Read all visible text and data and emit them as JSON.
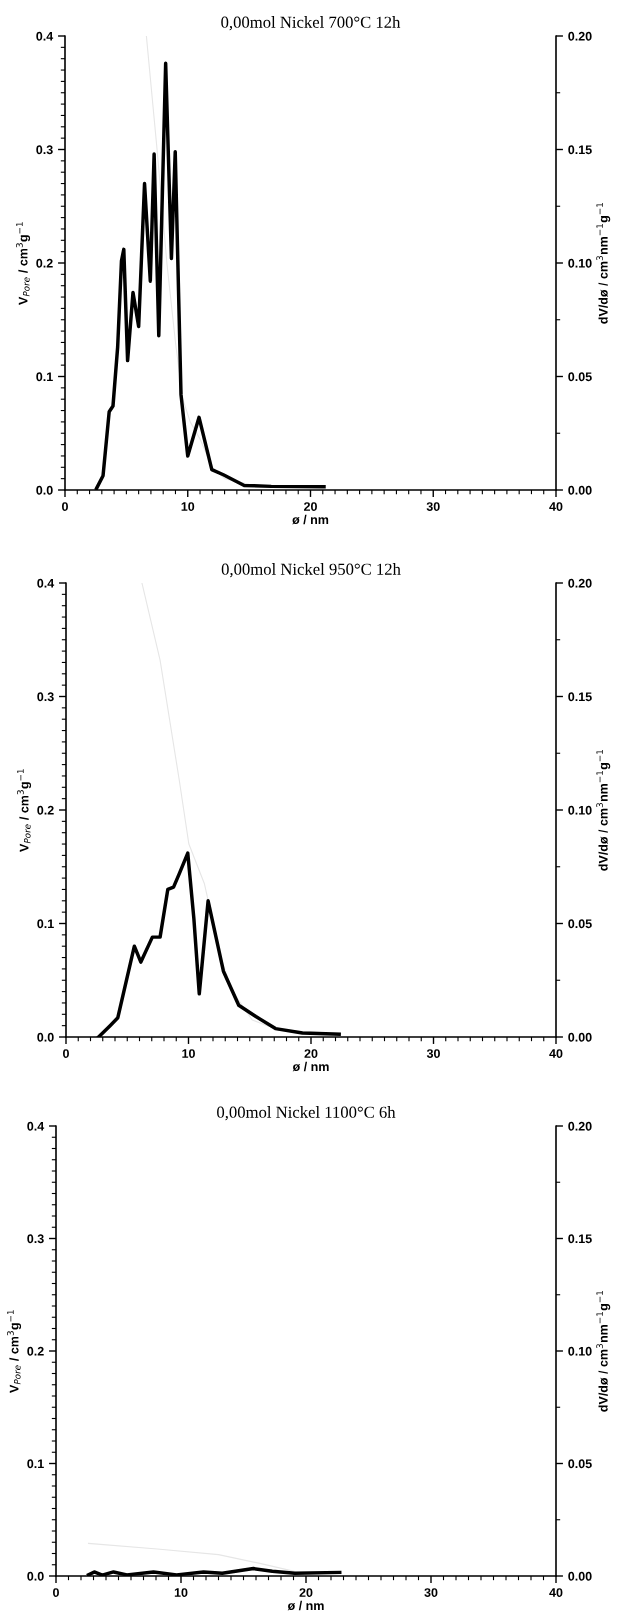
{
  "chart_data": [
    {
      "type": "line",
      "title": "0,00mol Nickel 700°C 12h",
      "xlabel": "ø / nm",
      "ylabel": "V$_{Pore}$ / cm$^{3}$g$^{−1}$",
      "y2label": "dV/dø / cm$^{3}$nm$^{−1}$g$^{−1}$",
      "xlim": [
        0,
        40
      ],
      "ylim": [
        0,
        0.4
      ],
      "y2lim": [
        0,
        0.2
      ],
      "xticks": [
        0,
        {
          "value": 1,
          "label": null
        },
        {
          "value": 2,
          "label": null
        },
        {
          "value": 3,
          "label": null
        },
        {
          "value": 4,
          "label": null
        },
        {
          "value": 5,
          "label": null
        },
        {
          "value": 6,
          "label": null
        },
        {
          "value": 7,
          "label": null
        },
        {
          "value": 8,
          "label": null
        },
        {
          "value": 9,
          "label": null
        },
        10,
        {
          "value": 11,
          "label": null
        },
        {
          "value": 12,
          "label": null
        },
        {
          "value": 13,
          "label": null
        },
        {
          "value": 14,
          "label": null
        },
        {
          "value": 15,
          "label": null
        },
        {
          "value": 16,
          "label": null
        },
        {
          "value": 17,
          "label": null
        },
        {
          "value": 18,
          "label": null
        },
        {
          "value": 19,
          "label": null
        },
        20,
        {
          "value": 21,
          "label": null
        },
        {
          "value": 22,
          "label": null
        },
        {
          "value": 23,
          "label": null
        },
        {
          "value": 24,
          "label": null
        },
        {
          "value": 25,
          "label": null
        },
        {
          "value": 26,
          "label": null
        },
        {
          "value": 27,
          "label": null
        },
        {
          "value": 28,
          "label": null
        },
        {
          "value": 29,
          "label": null
        },
        30,
        {
          "value": 31,
          "label": null
        },
        {
          "value": 32,
          "label": null
        },
        {
          "value": 33,
          "label": null
        },
        {
          "value": 34,
          "label": null
        },
        {
          "value": 35,
          "label": null
        },
        {
          "value": 36,
          "label": null
        },
        {
          "value": 37,
          "label": null
        },
        {
          "value": 38,
          "label": null
        },
        {
          "value": 39,
          "label": null
        },
        40
      ],
      "yticks": [
        {
          "value": 0,
          "label": "0.0"
        },
        {
          "value": 0.01,
          "label": null
        },
        {
          "value": 0.02,
          "label": null
        },
        {
          "value": 0.03,
          "label": null
        },
        {
          "value": 0.04,
          "label": null
        },
        {
          "value": 0.05,
          "label": null
        },
        {
          "value": 0.06,
          "label": null
        },
        {
          "value": 0.07,
          "label": null
        },
        {
          "value": 0.08,
          "label": null
        },
        {
          "value": 0.09,
          "label": null
        },
        0.1,
        {
          "value": 0.11,
          "label": null
        },
        {
          "value": 0.12,
          "label": null
        },
        {
          "value": 0.13,
          "label": null
        },
        {
          "value": 0.14,
          "label": null
        },
        {
          "value": 0.15,
          "label": null
        },
        {
          "value": 0.16,
          "label": null
        },
        {
          "value": 0.17,
          "label": null
        },
        {
          "value": 0.18,
          "label": null
        },
        {
          "value": 0.19,
          "label": null
        },
        0.2,
        {
          "value": 0.21,
          "label": null
        },
        {
          "value": 0.22,
          "label": null
        },
        {
          "value": 0.23,
          "label": null
        },
        {
          "value": 0.24,
          "label": null
        },
        {
          "value": 0.25,
          "label": null
        },
        {
          "value": 0.26,
          "label": null
        },
        {
          "value": 0.27,
          "label": null
        },
        {
          "value": 0.28,
          "label": null
        },
        {
          "value": 0.29,
          "label": null
        },
        0.3,
        {
          "value": 0.31,
          "label": null
        },
        {
          "value": 0.32,
          "label": null
        },
        {
          "value": 0.33,
          "label": null
        },
        {
          "value": 0.34,
          "label": null
        },
        {
          "value": 0.35,
          "label": null
        },
        {
          "value": 0.36,
          "label": null
        },
        {
          "value": 0.37,
          "label": null
        },
        {
          "value": 0.38,
          "label": null
        },
        {
          "value": 0.39,
          "label": null
        },
        0.4
      ],
      "y2ticks": [
        {
          "value": 0,
          "label": "0.00"
        },
        {
          "value": 0.025,
          "label": null
        },
        {
          "value": 0.05,
          "label": "0.05"
        },
        {
          "value": 0.075,
          "label": null
        },
        {
          "value": 0.1,
          "label": "0.10"
        },
        {
          "value": 0.125,
          "label": null
        },
        {
          "value": 0.15,
          "label": "0.15"
        },
        {
          "value": 0.175,
          "label": null
        },
        {
          "value": 0.2,
          "label": "0.20"
        }
      ],
      "grid": false,
      "marker": "none",
      "line_style": "solid",
      "series": [
        {
          "color": "#e6e6e6",
          "x": [
            6.63,
            7.5,
            8.3,
            9.0,
            9.6,
            10.2,
            11,
            12,
            13,
            15,
            17,
            21
          ],
          "values": [
            0.4,
            0.3,
            0.2,
            0.13,
            0.08,
            0.06,
            0.045,
            0.02,
            0.01,
            0.005,
            0.003,
            0.002
          ]
        },
        {
          "axis": "y2",
          "color": "#000000",
          "x": [
            2.57,
            3.1,
            3.6,
            3.91,
            4.29,
            4.6,
            4.79,
            5.1,
            5.54,
            6.0,
            6.48,
            6.95,
            7.26,
            7.64,
            8.2,
            8.67,
            8.98,
            9.45,
            10.0,
            10.92,
            11.96,
            12.9,
            14.6,
            16.8,
            21.1
          ],
          "values": [
            0.0007,
            0.0063,
            0.0345,
            0.037,
            0.063,
            0.101,
            0.106,
            0.057,
            0.087,
            0.072,
            0.135,
            0.092,
            0.148,
            0.068,
            0.188,
            0.102,
            0.149,
            0.042,
            0.015,
            0.032,
            0.009,
            0.0067,
            0.002,
            0.0016,
            0.0014
          ]
        }
      ]
    },
    {
      "type": "line",
      "title": "0,00mol Nickel 950°C 12h",
      "xlabel": "ø / nm",
      "ylabel": "V$_{Pore}$ / cm$^{3}$g$^{−1}$",
      "y2label": "dV/dø / cm$^{3}$nm$^{−1}$g$^{−1}$",
      "xlim": [
        0,
        40
      ],
      "ylim": [
        0,
        0.4
      ],
      "y2lim": [
        0,
        0.2
      ],
      "xticks": [
        0,
        {
          "value": 1,
          "label": null
        },
        {
          "value": 2,
          "label": null
        },
        {
          "value": 3,
          "label": null
        },
        {
          "value": 4,
          "label": null
        },
        {
          "value": 5,
          "label": null
        },
        {
          "value": 6,
          "label": null
        },
        {
          "value": 7,
          "label": null
        },
        {
          "value": 8,
          "label": null
        },
        {
          "value": 9,
          "label": null
        },
        10,
        {
          "value": 11,
          "label": null
        },
        {
          "value": 12,
          "label": null
        },
        {
          "value": 13,
          "label": null
        },
        {
          "value": 14,
          "label": null
        },
        {
          "value": 15,
          "label": null
        },
        {
          "value": 16,
          "label": null
        },
        {
          "value": 17,
          "label": null
        },
        {
          "value": 18,
          "label": null
        },
        {
          "value": 19,
          "label": null
        },
        20,
        {
          "value": 21,
          "label": null
        },
        {
          "value": 22,
          "label": null
        },
        {
          "value": 23,
          "label": null
        },
        {
          "value": 24,
          "label": null
        },
        {
          "value": 25,
          "label": null
        },
        {
          "value": 26,
          "label": null
        },
        {
          "value": 27,
          "label": null
        },
        {
          "value": 28,
          "label": null
        },
        {
          "value": 29,
          "label": null
        },
        30,
        {
          "value": 31,
          "label": null
        },
        {
          "value": 32,
          "label": null
        },
        {
          "value": 33,
          "label": null
        },
        {
          "value": 34,
          "label": null
        },
        {
          "value": 35,
          "label": null
        },
        {
          "value": 36,
          "label": null
        },
        {
          "value": 37,
          "label": null
        },
        {
          "value": 38,
          "label": null
        },
        {
          "value": 39,
          "label": null
        },
        40
      ],
      "yticks": [
        {
          "value": 0,
          "label": "0.0"
        },
        {
          "value": 0.01,
          "label": null
        },
        {
          "value": 0.02,
          "label": null
        },
        {
          "value": 0.03,
          "label": null
        },
        {
          "value": 0.04,
          "label": null
        },
        {
          "value": 0.05,
          "label": null
        },
        {
          "value": 0.06,
          "label": null
        },
        {
          "value": 0.07,
          "label": null
        },
        {
          "value": 0.08,
          "label": null
        },
        {
          "value": 0.09,
          "label": null
        },
        0.1,
        {
          "value": 0.11,
          "label": null
        },
        {
          "value": 0.12,
          "label": null
        },
        {
          "value": 0.13,
          "label": null
        },
        {
          "value": 0.14,
          "label": null
        },
        {
          "value": 0.15,
          "label": null
        },
        {
          "value": 0.16,
          "label": null
        },
        {
          "value": 0.17,
          "label": null
        },
        {
          "value": 0.18,
          "label": null
        },
        {
          "value": 0.19,
          "label": null
        },
        0.2,
        {
          "value": 0.21,
          "label": null
        },
        {
          "value": 0.22,
          "label": null
        },
        {
          "value": 0.23,
          "label": null
        },
        {
          "value": 0.24,
          "label": null
        },
        {
          "value": 0.25,
          "label": null
        },
        {
          "value": 0.26,
          "label": null
        },
        {
          "value": 0.27,
          "label": null
        },
        {
          "value": 0.28,
          "label": null
        },
        {
          "value": 0.29,
          "label": null
        },
        0.3,
        {
          "value": 0.31,
          "label": null
        },
        {
          "value": 0.32,
          "label": null
        },
        {
          "value": 0.33,
          "label": null
        },
        {
          "value": 0.34,
          "label": null
        },
        {
          "value": 0.35,
          "label": null
        },
        {
          "value": 0.36,
          "label": null
        },
        {
          "value": 0.37,
          "label": null
        },
        {
          "value": 0.38,
          "label": null
        },
        {
          "value": 0.39,
          "label": null
        },
        0.4
      ],
      "y2ticks": [
        {
          "value": 0,
          "label": "0.00"
        },
        {
          "value": 0.025,
          "label": null
        },
        {
          "value": 0.05,
          "label": "0.05"
        },
        {
          "value": 0.075,
          "label": null
        },
        {
          "value": 0.1,
          "label": "0.10"
        },
        {
          "value": 0.125,
          "label": null
        },
        {
          "value": 0.15,
          "label": "0.15"
        },
        {
          "value": 0.175,
          "label": null
        },
        {
          "value": 0.2,
          "label": "0.20"
        }
      ],
      "grid": false,
      "marker": "none",
      "line_style": "solid",
      "series": [
        {
          "color": "#e6e6e6",
          "x": [
            6.2,
            7.68,
            9.25,
            10.03,
            11.3,
            12.7,
            13.6,
            15.2,
            17.4,
            22.3
          ],
          "values": [
            0.4,
            0.332,
            0.226,
            0.17,
            0.135,
            0.068,
            0.04,
            0.015,
            0.006,
            0.003
          ]
        },
        {
          "axis": "y2",
          "color": "#000000",
          "x": [
            2.66,
            3.6,
            4.23,
            5.58,
            6.11,
            7.05,
            7.68,
            8.31,
            8.78,
            9.25,
            9.94,
            10.44,
            10.88,
            11.6,
            12.85,
            14.1,
            15.5,
            17.1,
            19.3,
            22.3
          ],
          "values": [
            0,
            0.005,
            0.0085,
            0.04,
            0.033,
            0.044,
            0.044,
            0.065,
            0.066,
            0.072,
            0.081,
            0.052,
            0.019,
            0.06,
            0.029,
            0.014,
            0.009,
            0.0037,
            0.0018,
            0.0012
          ]
        }
      ]
    },
    {
      "type": "line",
      "title": "0,00mol Nickel 1100°C 6h",
      "xlabel": "ø / nm",
      "ylabel": "V$_{Pore}$ / cm$^{3}$g$^{−1}$",
      "y2label": "dV/dø / cm$^{3}$nm$^{−1}$g$^{−1}$",
      "xlim": [
        0,
        40
      ],
      "ylim": [
        0,
        0.4
      ],
      "y2lim": [
        0,
        0.2
      ],
      "xticks": [
        0,
        {
          "value": 1,
          "label": null
        },
        {
          "value": 2,
          "label": null
        },
        {
          "value": 3,
          "label": null
        },
        {
          "value": 4,
          "label": null
        },
        {
          "value": 5,
          "label": null
        },
        {
          "value": 6,
          "label": null
        },
        {
          "value": 7,
          "label": null
        },
        {
          "value": 8,
          "label": null
        },
        {
          "value": 9,
          "label": null
        },
        10,
        {
          "value": 11,
          "label": null
        },
        {
          "value": 12,
          "label": null
        },
        {
          "value": 13,
          "label": null
        },
        {
          "value": 14,
          "label": null
        },
        {
          "value": 15,
          "label": null
        },
        {
          "value": 16,
          "label": null
        },
        {
          "value": 17,
          "label": null
        },
        {
          "value": 18,
          "label": null
        },
        {
          "value": 19,
          "label": null
        },
        20,
        {
          "value": 21,
          "label": null
        },
        {
          "value": 22,
          "label": null
        },
        {
          "value": 23,
          "label": null
        },
        {
          "value": 24,
          "label": null
        },
        {
          "value": 25,
          "label": null
        },
        {
          "value": 26,
          "label": null
        },
        {
          "value": 27,
          "label": null
        },
        {
          "value": 28,
          "label": null
        },
        {
          "value": 29,
          "label": null
        },
        30,
        {
          "value": 31,
          "label": null
        },
        {
          "value": 32,
          "label": null
        },
        {
          "value": 33,
          "label": null
        },
        {
          "value": 34,
          "label": null
        },
        {
          "value": 35,
          "label": null
        },
        {
          "value": 36,
          "label": null
        },
        {
          "value": 37,
          "label": null
        },
        {
          "value": 38,
          "label": null
        },
        {
          "value": 39,
          "label": null
        },
        40
      ],
      "yticks": [
        {
          "value": 0,
          "label": "0.0"
        },
        {
          "value": 0.01,
          "label": null
        },
        {
          "value": 0.02,
          "label": null
        },
        {
          "value": 0.03,
          "label": null
        },
        {
          "value": 0.04,
          "label": null
        },
        {
          "value": 0.05,
          "label": null
        },
        {
          "value": 0.06,
          "label": null
        },
        {
          "value": 0.07,
          "label": null
        },
        {
          "value": 0.08,
          "label": null
        },
        {
          "value": 0.09,
          "label": null
        },
        0.1,
        {
          "value": 0.11,
          "label": null
        },
        {
          "value": 0.12,
          "label": null
        },
        {
          "value": 0.13,
          "label": null
        },
        {
          "value": 0.14,
          "label": null
        },
        {
          "value": 0.15,
          "label": null
        },
        {
          "value": 0.16,
          "label": null
        },
        {
          "value": 0.17,
          "label": null
        },
        {
          "value": 0.18,
          "label": null
        },
        {
          "value": 0.19,
          "label": null
        },
        0.2,
        {
          "value": 0.21,
          "label": null
        },
        {
          "value": 0.22,
          "label": null
        },
        {
          "value": 0.23,
          "label": null
        },
        {
          "value": 0.24,
          "label": null
        },
        {
          "value": 0.25,
          "label": null
        },
        {
          "value": 0.26,
          "label": null
        },
        {
          "value": 0.27,
          "label": null
        },
        {
          "value": 0.28,
          "label": null
        },
        {
          "value": 0.29,
          "label": null
        },
        0.3,
        {
          "value": 0.31,
          "label": null
        },
        {
          "value": 0.32,
          "label": null
        },
        {
          "value": 0.33,
          "label": null
        },
        {
          "value": 0.34,
          "label": null
        },
        {
          "value": 0.35,
          "label": null
        },
        {
          "value": 0.36,
          "label": null
        },
        {
          "value": 0.37,
          "label": null
        },
        {
          "value": 0.38,
          "label": null
        },
        {
          "value": 0.39,
          "label": null
        },
        0.4
      ],
      "y2ticks": [
        {
          "value": 0,
          "label": "0.00"
        },
        {
          "value": 0.025,
          "label": null
        },
        {
          "value": 0.05,
          "label": "0.05"
        },
        {
          "value": 0.075,
          "label": null
        },
        {
          "value": 0.1,
          "label": "0.10"
        },
        {
          "value": 0.125,
          "label": null
        },
        {
          "value": 0.15,
          "label": "0.15"
        },
        {
          "value": 0.175,
          "label": null
        },
        {
          "value": 0.2,
          "label": "0.20"
        }
      ],
      "grid": false,
      "marker": "none",
      "line_style": "solid",
      "series": [
        {
          "color": "#e6e6e6",
          "x": [
            2.6,
            8.1,
            13.0,
            16.4,
            19.1
          ],
          "values": [
            0.029,
            0.024,
            0.019,
            0.011,
            0.004
          ]
        },
        {
          "axis": "y2",
          "color": "#000000",
          "x": [
            2.6,
            3.06,
            3.7,
            4.6,
            5.67,
            7.8,
            9.65,
            11.8,
            13.3,
            15.8,
            17.3,
            19.1,
            22.7
          ],
          "values": [
            0.0005,
            0.0018,
            0.0004,
            0.0018,
            0.0005,
            0.0018,
            0.0005,
            0.0018,
            0.0012,
            0.0033,
            0.0021,
            0.0012,
            0.0016
          ]
        }
      ]
    }
  ]
}
